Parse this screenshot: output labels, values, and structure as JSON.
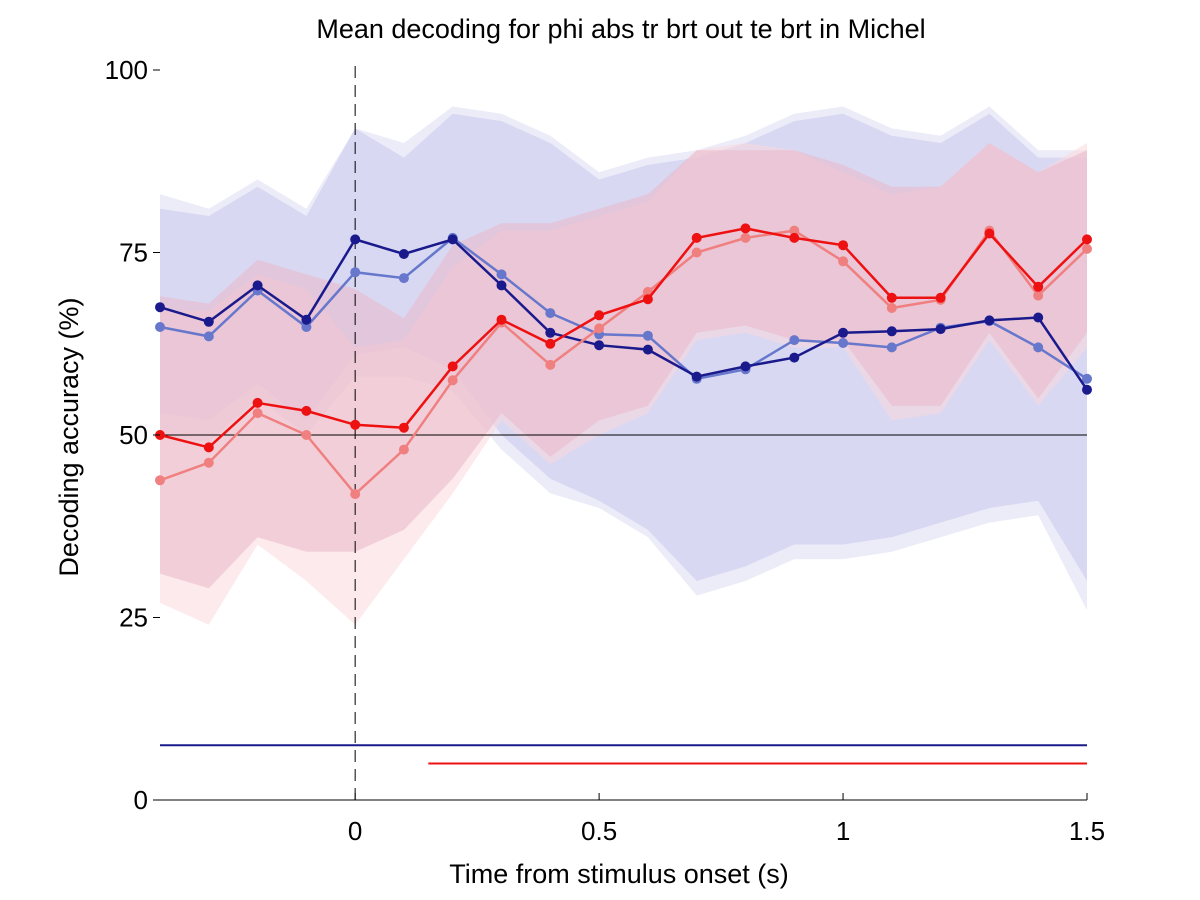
{
  "chart_data": {
    "type": "line",
    "title": "Mean decoding for phi abs tr brt out te brt in  Michel",
    "xlabel": "Time from stimulus onset (s)",
    "ylabel": "Decoding accuracy (%)",
    "xlim": [
      -0.4,
      1.5
    ],
    "ylim": [
      0,
      100
    ],
    "xticks": [
      0,
      0.5,
      1,
      1.5
    ],
    "xtick_labels": [
      "0",
      "0.5",
      "1",
      "1.5"
    ],
    "yticks": [
      0,
      25,
      50,
      75,
      100
    ],
    "ytick_labels": [
      "0",
      "25",
      "50",
      "75",
      "100"
    ],
    "chance_level": 50,
    "onset_marker_x": 0,
    "x": [
      -0.4,
      -0.3,
      -0.2,
      -0.1,
      0,
      0.1,
      0.2,
      0.3,
      0.4,
      0.5,
      0.6,
      0.7,
      0.8,
      0.9,
      1.0,
      1.1,
      1.2,
      1.3,
      1.4,
      1.5
    ],
    "series": [
      {
        "color": "#1a1a8c",
        "band_color": "#c8c8ee",
        "values": [
          67.5,
          65.5,
          70.5,
          65.8,
          76.8,
          74.8,
          76.8,
          70.5,
          64.0,
          62.3,
          61.7,
          58.0,
          59.4,
          60.6,
          64.0,
          64.2,
          64.5,
          65.7,
          66.1,
          56.2
        ],
        "upper": [
          81,
          80,
          84,
          80,
          92,
          88,
          94,
          93,
          90,
          85,
          87,
          88,
          90,
          93,
          94,
          91,
          90,
          94,
          88,
          88
        ],
        "lower": [
          53,
          52,
          57,
          52,
          61,
          62,
          59,
          50,
          44,
          41,
          37,
          30,
          32,
          35,
          35,
          36,
          38,
          40,
          41,
          30
        ]
      },
      {
        "color": "#6677cc",
        "band_color": "#dcdcf4",
        "values": [
          64.8,
          63.5,
          69.8,
          64.8,
          72.3,
          71.5,
          77.0,
          72.0,
          66.7,
          63.8,
          63.6,
          57.7,
          59.0,
          63.0,
          62.6,
          62.0,
          64.7,
          65.6,
          62.0,
          57.7
        ],
        "upper": [
          83,
          81,
          85,
          81,
          92,
          90,
          95,
          94,
          91,
          86,
          88,
          89,
          91,
          94,
          95,
          92,
          91,
          95,
          89,
          89
        ],
        "lower": [
          50,
          49,
          55,
          50,
          58,
          58,
          56,
          48,
          42,
          40,
          36,
          28,
          30,
          33,
          33,
          34,
          36,
          38,
          39,
          26
        ]
      },
      {
        "color": "#ee1111",
        "band_color": "#eab8c8",
        "values": [
          50.0,
          48.3,
          54.4,
          53.3,
          51.4,
          51.0,
          59.4,
          65.8,
          62.5,
          66.4,
          68.6,
          77.0,
          78.3,
          77.0,
          76.0,
          68.8,
          68.8,
          77.6,
          70.3,
          76.8
        ],
        "upper": [
          69,
          68,
          74,
          72,
          70,
          66,
          76,
          79,
          79,
          81,
          83,
          89,
          89,
          89,
          87,
          84,
          84,
          90,
          86,
          89
        ],
        "lower": [
          31,
          29,
          36,
          34,
          34,
          37,
          44,
          53,
          47,
          52,
          54,
          64,
          65,
          63,
          63,
          54,
          54,
          64,
          55,
          64
        ]
      },
      {
        "color": "#f08080",
        "band_color": "#fbd8dc",
        "values": [
          43.8,
          46.2,
          53.0,
          50.0,
          41.9,
          48.0,
          57.5,
          65.4,
          59.6,
          64.6,
          69.6,
          75.0,
          77.0,
          78.0,
          73.8,
          67.4,
          68.5,
          78.0,
          69.1,
          75.5
        ],
        "upper": [
          67,
          67,
          72,
          70,
          62,
          63,
          73,
          78,
          78,
          80,
          82,
          89,
          90,
          89,
          86,
          83,
          84,
          90,
          86,
          90
        ],
        "lower": [
          27,
          24,
          35,
          30,
          24,
          33,
          42,
          52,
          46,
          50,
          53,
          63,
          64,
          62,
          62,
          52,
          53,
          63,
          54,
          62
        ]
      }
    ],
    "significance_bars": [
      {
        "color": "#1a1a8c",
        "y": 7.5,
        "x_start": -0.4,
        "x_end": 1.5
      },
      {
        "color": "#ee1111",
        "y": 5.0,
        "x_start": 0.15,
        "x_end": 1.5
      }
    ]
  }
}
